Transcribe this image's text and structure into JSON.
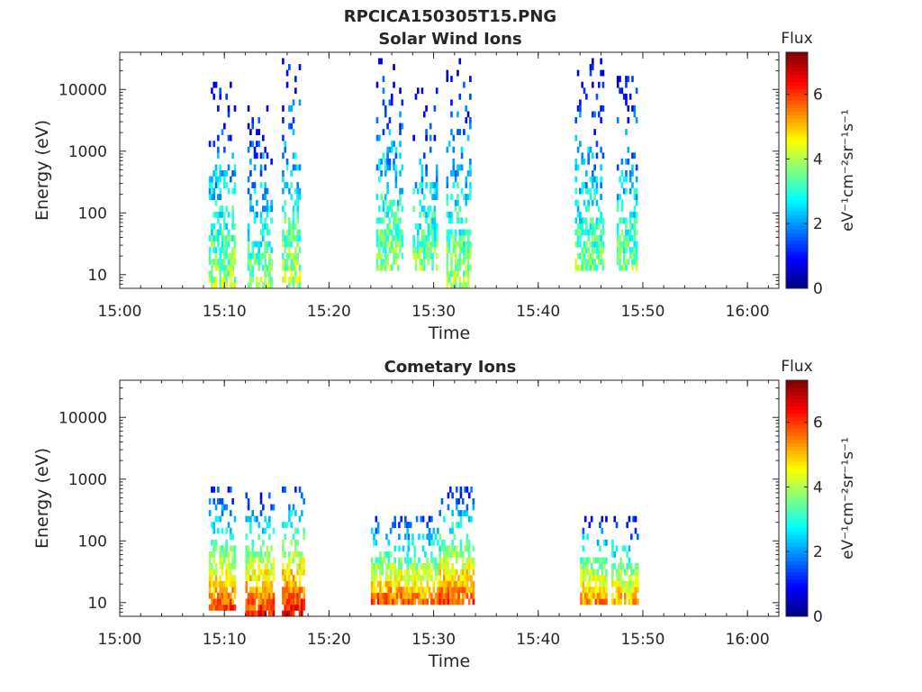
{
  "figure_title": "RPCICA150305T15.PNG",
  "chart_data": [
    {
      "type": "heatmap",
      "title": "Solar Wind Ions",
      "xlabel": "Time",
      "ylabel": "Energy (eV)",
      "yscale": "log",
      "xlim": [
        "15:00",
        "16:03"
      ],
      "ylim": [
        6,
        40000
      ],
      "xticks": [
        "15:00",
        "15:10",
        "15:20",
        "15:30",
        "15:40",
        "15:50",
        "16:00"
      ],
      "yticks": [
        10,
        100,
        1000,
        10000
      ],
      "colorbar": {
        "label_top": "Flux",
        "label": "eV⁻¹cm⁻²sr⁻¹s⁻¹",
        "range": [
          0,
          7.3
        ],
        "ticks": [
          0,
          2,
          4,
          6
        ]
      },
      "colormap": "jet",
      "bursts": [
        {
          "t_start": "15:08.5",
          "t_end": "15:11.0",
          "e_low": 6,
          "e_high": 13000,
          "peak_flux": 4.8
        },
        {
          "t_start": "15:12.2",
          "t_end": "15:14.5",
          "e_low": 6,
          "e_high": 6000,
          "peak_flux": 4.6
        },
        {
          "t_start": "15:15.5",
          "t_end": "15:17.2",
          "e_low": 6,
          "e_high": 34000,
          "peak_flux": 4.9
        },
        {
          "t_start": "15:24.5",
          "t_end": "15:27.0",
          "e_low": 10,
          "e_high": 28000,
          "peak_flux": 4.8
        },
        {
          "t_start": "15:28.0",
          "t_end": "15:30.2",
          "e_low": 10,
          "e_high": 9000,
          "peak_flux": 4.7
        },
        {
          "t_start": "15:31.2",
          "t_end": "15:33.5",
          "e_low": 6,
          "e_high": 27000,
          "peak_flux": 4.7
        },
        {
          "t_start": "15:43.5",
          "t_end": "15:46.2",
          "e_low": 10,
          "e_high": 27000,
          "peak_flux": 4.5
        },
        {
          "t_start": "15:47.5",
          "t_end": "15:49.5",
          "e_low": 10,
          "e_high": 22000,
          "peak_flux": 4.5
        }
      ]
    },
    {
      "type": "heatmap",
      "title": "Cometary Ions",
      "xlabel": "Time",
      "ylabel": "Energy (eV)",
      "yscale": "log",
      "xlim": [
        "15:00",
        "16:03"
      ],
      "ylim": [
        6,
        40000
      ],
      "xticks": [
        "15:00",
        "15:10",
        "15:20",
        "15:30",
        "15:40",
        "15:50",
        "16:00"
      ],
      "yticks": [
        10,
        100,
        1000,
        10000
      ],
      "colorbar": {
        "label_top": "Flux",
        "label": "eV⁻¹cm⁻²sr⁻¹s⁻¹",
        "range": [
          0,
          7.3
        ],
        "ticks": [
          0,
          2,
          4,
          6
        ]
      },
      "colormap": "jet",
      "bursts": [
        {
          "t_start": "15:08.5",
          "t_end": "15:11.0",
          "e_low": 7,
          "e_high": 700,
          "peak_flux": 6.5
        },
        {
          "t_start": "15:12.0",
          "t_end": "15:14.7",
          "e_low": 6,
          "e_high": 550,
          "peak_flux": 6.8
        },
        {
          "t_start": "15:15.5",
          "t_end": "15:17.6",
          "e_low": 6,
          "e_high": 700,
          "peak_flux": 7.0
        },
        {
          "t_start": "15:24.0",
          "t_end": "15:27.5",
          "e_low": 8,
          "e_high": 250,
          "peak_flux": 6.6
        },
        {
          "t_start": "15:27.5",
          "t_end": "15:30.5",
          "e_low": 8,
          "e_high": 250,
          "peak_flux": 6.4
        },
        {
          "t_start": "15:30.5",
          "t_end": "15:33.8",
          "e_low": 8,
          "e_high": 750,
          "peak_flux": 6.6
        },
        {
          "t_start": "15:44.0",
          "t_end": "15:46.5",
          "e_low": 8,
          "e_high": 250,
          "peak_flux": 6.2
        },
        {
          "t_start": "15:47.0",
          "t_end": "15:49.5",
          "e_low": 8,
          "e_high": 220,
          "peak_flux": 6.0
        }
      ]
    }
  ]
}
